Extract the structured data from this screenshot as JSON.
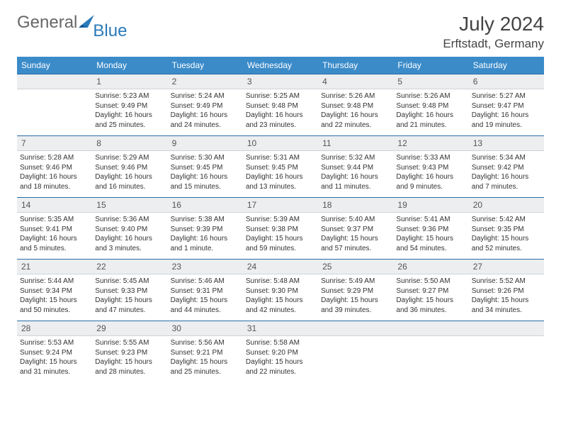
{
  "brand": {
    "word1": "General",
    "word2": "Blue"
  },
  "title": {
    "month": "July 2024",
    "location": "Erftstadt, Germany"
  },
  "colors": {
    "header_bg": "#3b8bc9",
    "header_text": "#ffffff",
    "daynum_bg": "#eceef0",
    "rule": "#2a6ca8",
    "brand_blue": "#2a7ab9",
    "text": "#333333"
  },
  "weekdays": [
    "Sunday",
    "Monday",
    "Tuesday",
    "Wednesday",
    "Thursday",
    "Friday",
    "Saturday"
  ],
  "weeks": [
    {
      "nums": [
        "",
        "1",
        "2",
        "3",
        "4",
        "5",
        "6"
      ],
      "cells": [
        null,
        {
          "sr": "Sunrise: 5:23 AM",
          "ss": "Sunset: 9:49 PM",
          "d1": "Daylight: 16 hours",
          "d2": "and 25 minutes."
        },
        {
          "sr": "Sunrise: 5:24 AM",
          "ss": "Sunset: 9:49 PM",
          "d1": "Daylight: 16 hours",
          "d2": "and 24 minutes."
        },
        {
          "sr": "Sunrise: 5:25 AM",
          "ss": "Sunset: 9:48 PM",
          "d1": "Daylight: 16 hours",
          "d2": "and 23 minutes."
        },
        {
          "sr": "Sunrise: 5:26 AM",
          "ss": "Sunset: 9:48 PM",
          "d1": "Daylight: 16 hours",
          "d2": "and 22 minutes."
        },
        {
          "sr": "Sunrise: 5:26 AM",
          "ss": "Sunset: 9:48 PM",
          "d1": "Daylight: 16 hours",
          "d2": "and 21 minutes."
        },
        {
          "sr": "Sunrise: 5:27 AM",
          "ss": "Sunset: 9:47 PM",
          "d1": "Daylight: 16 hours",
          "d2": "and 19 minutes."
        }
      ]
    },
    {
      "nums": [
        "7",
        "8",
        "9",
        "10",
        "11",
        "12",
        "13"
      ],
      "cells": [
        {
          "sr": "Sunrise: 5:28 AM",
          "ss": "Sunset: 9:46 PM",
          "d1": "Daylight: 16 hours",
          "d2": "and 18 minutes."
        },
        {
          "sr": "Sunrise: 5:29 AM",
          "ss": "Sunset: 9:46 PM",
          "d1": "Daylight: 16 hours",
          "d2": "and 16 minutes."
        },
        {
          "sr": "Sunrise: 5:30 AM",
          "ss": "Sunset: 9:45 PM",
          "d1": "Daylight: 16 hours",
          "d2": "and 15 minutes."
        },
        {
          "sr": "Sunrise: 5:31 AM",
          "ss": "Sunset: 9:45 PM",
          "d1": "Daylight: 16 hours",
          "d2": "and 13 minutes."
        },
        {
          "sr": "Sunrise: 5:32 AM",
          "ss": "Sunset: 9:44 PM",
          "d1": "Daylight: 16 hours",
          "d2": "and 11 minutes."
        },
        {
          "sr": "Sunrise: 5:33 AM",
          "ss": "Sunset: 9:43 PM",
          "d1": "Daylight: 16 hours",
          "d2": "and 9 minutes."
        },
        {
          "sr": "Sunrise: 5:34 AM",
          "ss": "Sunset: 9:42 PM",
          "d1": "Daylight: 16 hours",
          "d2": "and 7 minutes."
        }
      ]
    },
    {
      "nums": [
        "14",
        "15",
        "16",
        "17",
        "18",
        "19",
        "20"
      ],
      "cells": [
        {
          "sr": "Sunrise: 5:35 AM",
          "ss": "Sunset: 9:41 PM",
          "d1": "Daylight: 16 hours",
          "d2": "and 5 minutes."
        },
        {
          "sr": "Sunrise: 5:36 AM",
          "ss": "Sunset: 9:40 PM",
          "d1": "Daylight: 16 hours",
          "d2": "and 3 minutes."
        },
        {
          "sr": "Sunrise: 5:38 AM",
          "ss": "Sunset: 9:39 PM",
          "d1": "Daylight: 16 hours",
          "d2": "and 1 minute."
        },
        {
          "sr": "Sunrise: 5:39 AM",
          "ss": "Sunset: 9:38 PM",
          "d1": "Daylight: 15 hours",
          "d2": "and 59 minutes."
        },
        {
          "sr": "Sunrise: 5:40 AM",
          "ss": "Sunset: 9:37 PM",
          "d1": "Daylight: 15 hours",
          "d2": "and 57 minutes."
        },
        {
          "sr": "Sunrise: 5:41 AM",
          "ss": "Sunset: 9:36 PM",
          "d1": "Daylight: 15 hours",
          "d2": "and 54 minutes."
        },
        {
          "sr": "Sunrise: 5:42 AM",
          "ss": "Sunset: 9:35 PM",
          "d1": "Daylight: 15 hours",
          "d2": "and 52 minutes."
        }
      ]
    },
    {
      "nums": [
        "21",
        "22",
        "23",
        "24",
        "25",
        "26",
        "27"
      ],
      "cells": [
        {
          "sr": "Sunrise: 5:44 AM",
          "ss": "Sunset: 9:34 PM",
          "d1": "Daylight: 15 hours",
          "d2": "and 50 minutes."
        },
        {
          "sr": "Sunrise: 5:45 AM",
          "ss": "Sunset: 9:33 PM",
          "d1": "Daylight: 15 hours",
          "d2": "and 47 minutes."
        },
        {
          "sr": "Sunrise: 5:46 AM",
          "ss": "Sunset: 9:31 PM",
          "d1": "Daylight: 15 hours",
          "d2": "and 44 minutes."
        },
        {
          "sr": "Sunrise: 5:48 AM",
          "ss": "Sunset: 9:30 PM",
          "d1": "Daylight: 15 hours",
          "d2": "and 42 minutes."
        },
        {
          "sr": "Sunrise: 5:49 AM",
          "ss": "Sunset: 9:29 PM",
          "d1": "Daylight: 15 hours",
          "d2": "and 39 minutes."
        },
        {
          "sr": "Sunrise: 5:50 AM",
          "ss": "Sunset: 9:27 PM",
          "d1": "Daylight: 15 hours",
          "d2": "and 36 minutes."
        },
        {
          "sr": "Sunrise: 5:52 AM",
          "ss": "Sunset: 9:26 PM",
          "d1": "Daylight: 15 hours",
          "d2": "and 34 minutes."
        }
      ]
    },
    {
      "nums": [
        "28",
        "29",
        "30",
        "31",
        "",
        "",
        ""
      ],
      "cells": [
        {
          "sr": "Sunrise: 5:53 AM",
          "ss": "Sunset: 9:24 PM",
          "d1": "Daylight: 15 hours",
          "d2": "and 31 minutes."
        },
        {
          "sr": "Sunrise: 5:55 AM",
          "ss": "Sunset: 9:23 PM",
          "d1": "Daylight: 15 hours",
          "d2": "and 28 minutes."
        },
        {
          "sr": "Sunrise: 5:56 AM",
          "ss": "Sunset: 9:21 PM",
          "d1": "Daylight: 15 hours",
          "d2": "and 25 minutes."
        },
        {
          "sr": "Sunrise: 5:58 AM",
          "ss": "Sunset: 9:20 PM",
          "d1": "Daylight: 15 hours",
          "d2": "and 22 minutes."
        },
        null,
        null,
        null
      ]
    }
  ]
}
